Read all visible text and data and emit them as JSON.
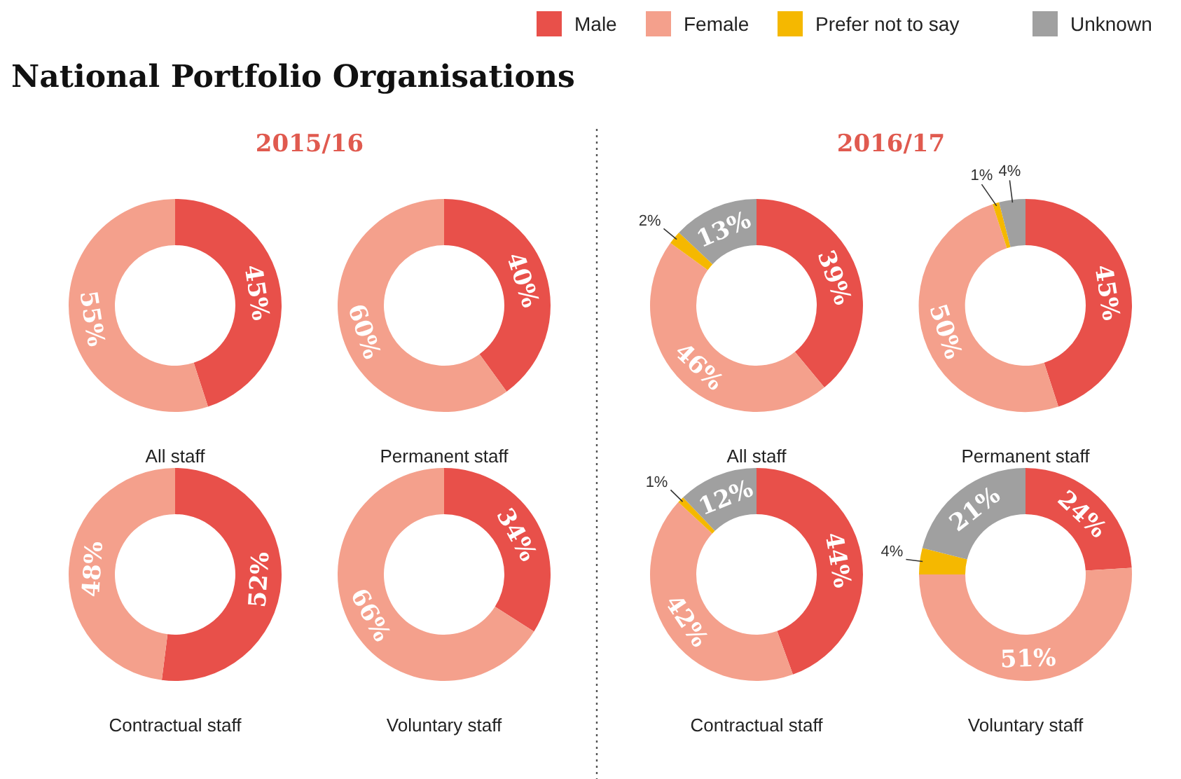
{
  "chart_data": [
    {
      "type": "other",
      "title": "National Portfolio Organisations"
    },
    {
      "type": "donut",
      "subtitle": "2015/16",
      "title": "All staff",
      "values": [
        45,
        55
      ],
      "colors": [
        "#e8504a",
        "#f4a08c"
      ],
      "value_labels": [
        "45%",
        "55%"
      ]
    },
    {
      "type": "donut",
      "title": "Permanent staff",
      "values": [
        40,
        60
      ],
      "colors": [
        "#e8504a",
        "#f4a08c"
      ],
      "value_labels": [
        "40%",
        "60%"
      ]
    },
    {
      "type": "donut",
      "title": "Contractual staff",
      "values": [
        52,
        48
      ],
      "colors": [
        "#e8504a",
        "#f4a08c"
      ],
      "value_labels": [
        "52%",
        "48%"
      ]
    },
    {
      "type": "donut",
      "title": "Voluntary staff",
      "values": [
        34,
        66
      ],
      "colors": [
        "#e8504a",
        "#f4a08c"
      ],
      "value_labels": [
        "34%",
        "66%"
      ]
    },
    {
      "type": "donut",
      "subtitle": "2016/17",
      "legend": "top right",
      "title": "All staff",
      "categories": [
        "Male",
        "Female",
        "Prefer not to say",
        "Unknown"
      ],
      "values": [
        39,
        46,
        2,
        13
      ],
      "colors": [
        "#e8504a",
        "#f4a08c",
        "#f5b800",
        "#a0a0a0"
      ],
      "value_labels": [
        "39%",
        "46%",
        "2%",
        "13%"
      ]
    },
    {
      "type": "donut",
      "title": "Permanent staff",
      "values": [
        45,
        50,
        1,
        4
      ],
      "colors": [
        "#e8504a",
        "#f4a08c",
        "#f5b800",
        "#a0a0a0"
      ],
      "value_labels": [
        "45%",
        "50%",
        "1%",
        "4%"
      ]
    },
    {
      "type": "donut",
      "title": "Contractual staff",
      "values": [
        44,
        42,
        1,
        12
      ],
      "colors": [
        "#e8504a",
        "#f4a08c",
        "#f5b800",
        "#a0a0a0"
      ],
      "value_labels": [
        "44%",
        "42%",
        "1%",
        "12%"
      ]
    },
    {
      "type": "donut",
      "title": "Voluntary staff",
      "values": [
        24,
        51,
        4,
        21
      ],
      "colors": [
        "#e8504a",
        "#f4a08c",
        "#f5b800",
        "#a0a0a0"
      ],
      "value_labels": [
        "24%",
        "51%",
        "4%",
        "21%"
      ]
    }
  ]
}
